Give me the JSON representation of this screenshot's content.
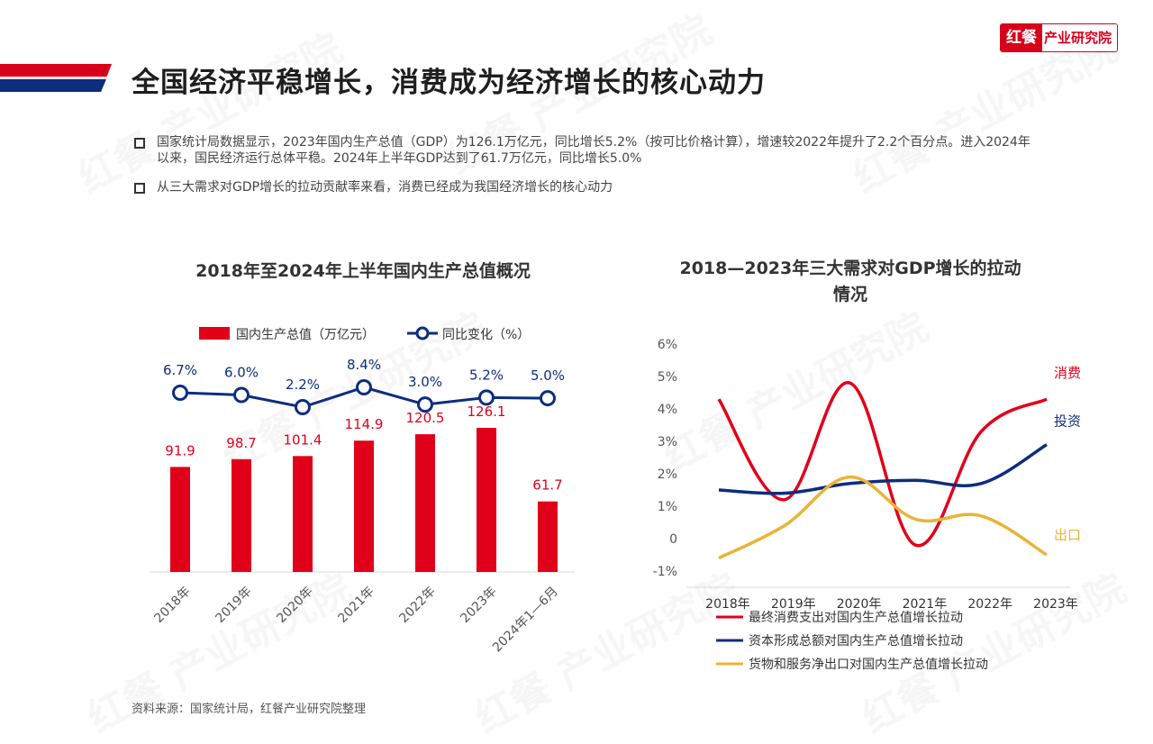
{
  "logo": {
    "mark": "红餐",
    "name": "产业研究院"
  },
  "watermark": "红餐 产业研究院",
  "page_title": "全国经济平稳增长，消费成为经济增长的核心动力",
  "bullets": [
    "国家统计局数据显示，2023年国内生产总值（GDP）为126.1万亿元，同比增长5.2%（按可比价格计算），增速较2022年提升了2.2个百分点。进入2024年以来，国民经济运行总体平稳。2024年上半年GDP达到了61.7万亿元，同比增长5.0%",
    "从三大需求对GDP增长的拉动贡献率来看，消费已经成为我国经济增长的核心动力"
  ],
  "source": "资料来源：国家统计局，红餐产业研究院整理",
  "colors": {
    "red": "#e1001a",
    "navy": "#0d2d7d",
    "gold": "#e9b437",
    "grid": "#d9d9d9"
  },
  "chart_data": [
    {
      "type": "bar",
      "title": "2018年至2024年上半年国内生产总值概况",
      "categories": [
        "2018年",
        "2019年",
        "2020年",
        "2021年",
        "2022年",
        "2023年",
        "2024年1—6月"
      ],
      "series": [
        {
          "name": "国内生产总值（万亿元）",
          "type": "bar",
          "values": [
            91.9,
            98.7,
            101.4,
            114.9,
            120.5,
            126.1,
            61.7
          ],
          "labels": [
            "91.9",
            "98.7",
            "101.4",
            "114.9",
            "120.5",
            "126.1",
            "61.7"
          ]
        },
        {
          "name": "同比变化（%）",
          "type": "line",
          "values": [
            6.7,
            6.0,
            2.2,
            8.4,
            3.0,
            5.2,
            5.0
          ],
          "labels": [
            "6.7%",
            "6.0%",
            "2.2%",
            "8.4%",
            "3.0%",
            "5.2%",
            "5.0%"
          ]
        }
      ],
      "legend": "top"
    },
    {
      "type": "line",
      "title": "2018—2023年三大需求对GDP增长的拉动情况",
      "title_lines": [
        "2018—2023年三大需求对GDP增长的拉动",
        "情况"
      ],
      "x": [
        "2018年",
        "2019年",
        "2020年",
        "2021年",
        "2022年",
        "2023年"
      ],
      "yticks": [
        "6%",
        "5%",
        "4%",
        "3%",
        "2%",
        "1%",
        "0",
        "-1%"
      ],
      "ylim": [
        -1,
        6
      ],
      "series": [
        {
          "name": "最终消费支出对国内生产总值增长拉动",
          "label": "消费",
          "values": [
            4.3,
            1.2,
            4.8,
            -0.2,
            3.3,
            4.3
          ]
        },
        {
          "name": "资本形成总额对国内生产总值增长拉动",
          "label": "投资",
          "values": [
            1.5,
            1.4,
            1.7,
            1.8,
            1.7,
            2.9
          ]
        },
        {
          "name": "货物和服务净出口对国内生产总值增长拉动",
          "label": "出口",
          "values": [
            -0.6,
            0.4,
            1.9,
            0.6,
            0.7,
            -0.5
          ]
        }
      ],
      "smooth": true,
      "legend": "bottom"
    }
  ]
}
